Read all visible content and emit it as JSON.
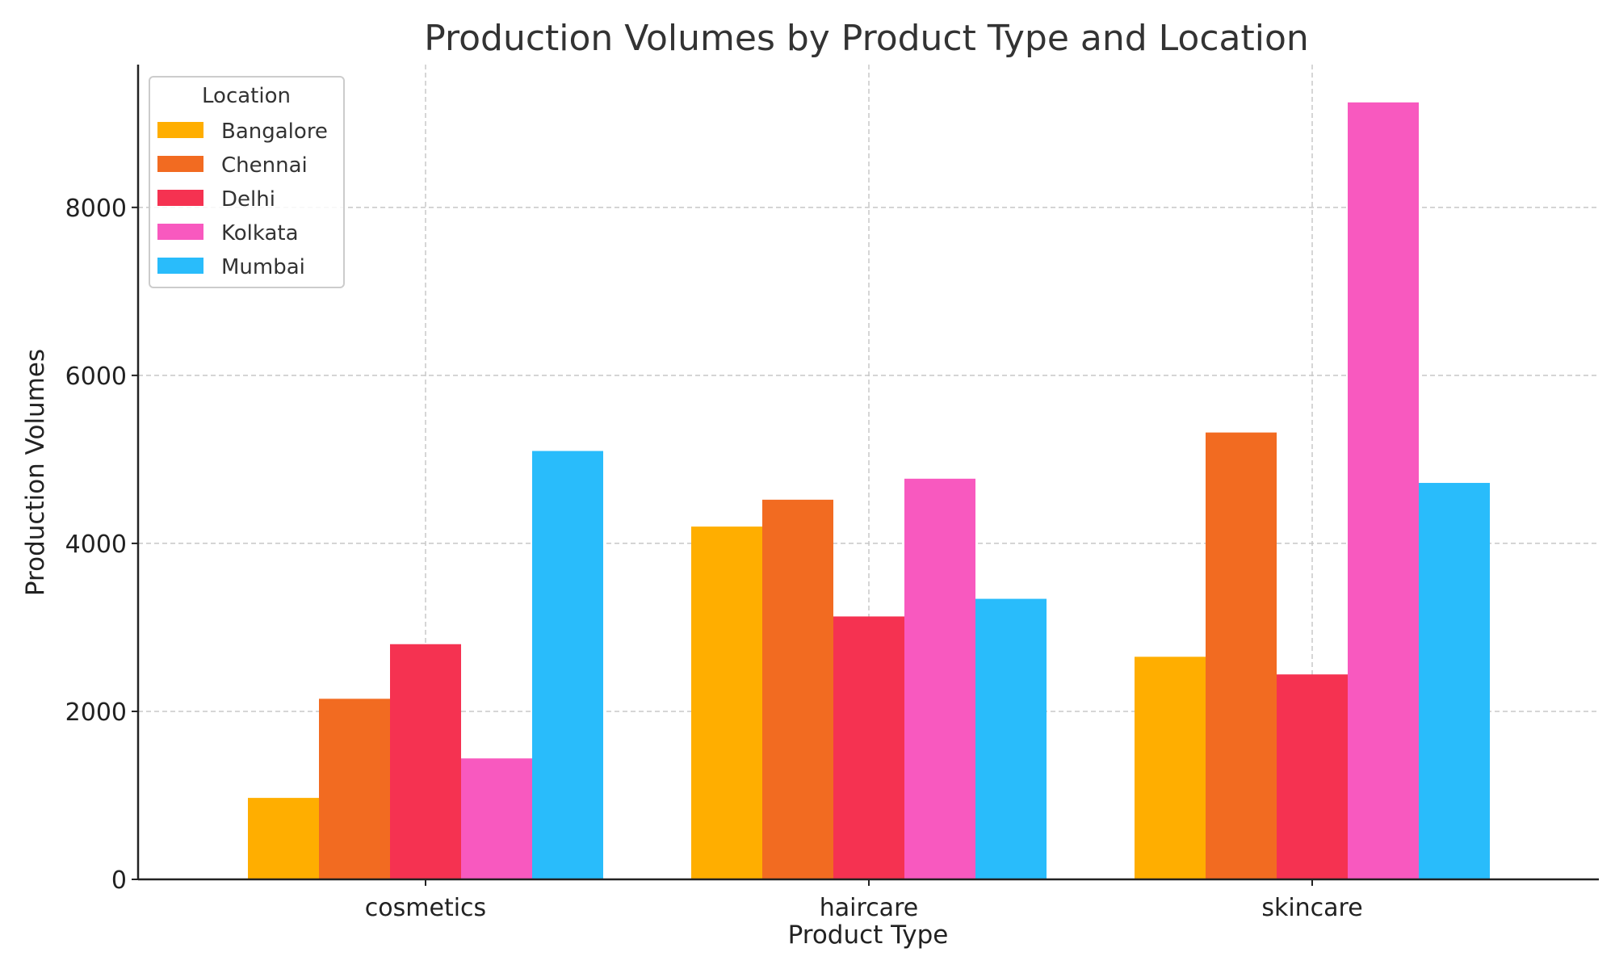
{
  "chart_data": {
    "type": "bar",
    "title": "Production Volumes by Product Type and Location",
    "xlabel": "Product Type",
    "ylabel": "Production Volumes",
    "categories": [
      "cosmetics",
      "haircare",
      "skincare"
    ],
    "series": [
      {
        "name": "Bangalore",
        "color": "#FFAE00",
        "values": [
          970,
          4200,
          2650
        ]
      },
      {
        "name": "Chennai",
        "color": "#F26B21",
        "values": [
          2150,
          4520,
          5320
        ]
      },
      {
        "name": "Delhi",
        "color": "#F53251",
        "values": [
          2800,
          3130,
          2440
        ]
      },
      {
        "name": "Kolkata",
        "color": "#F859BF",
        "values": [
          1440,
          4770,
          9250
        ]
      },
      {
        "name": "Mumbai",
        "color": "#29BCFB",
        "values": [
          5100,
          3340,
          4720
        ]
      }
    ],
    "ylim": [
      0,
      9700
    ],
    "yticks": [
      0,
      2000,
      4000,
      6000,
      8000
    ],
    "grid": true,
    "legend": {
      "title": "Location",
      "placement": "top-left"
    }
  }
}
